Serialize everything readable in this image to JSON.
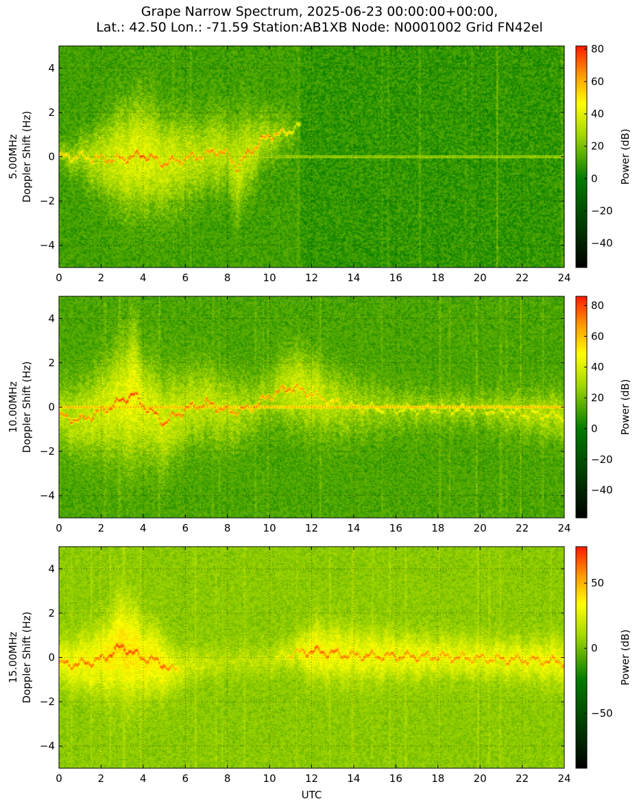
{
  "figure": {
    "title_line1": "Grape Narrow Spectrum, 2025-06-23 00:00:00+00:00,",
    "title_line2": "Lat.: 42.50 Lon.: -71.59 Station:AB1XB Node: N0001002 Grid FN42el"
  },
  "colors": {
    "low": "#000000",
    "green": "#007a00",
    "yellow_green": "#a5d800",
    "yellow": "#ffff00",
    "orange": "#ff9900",
    "red": "#ff1a00"
  },
  "chart_data": [
    {
      "type": "heatmap",
      "frequency_label": "5.00MHz",
      "ylabel": "Doppler Shift (Hz)",
      "xlabel": "",
      "colorbar_label": "Power (dB)",
      "xlim": [
        0,
        24
      ],
      "ylim": [
        -5,
        5
      ],
      "x_ticks": [
        0,
        2,
        4,
        6,
        8,
        10,
        12,
        14,
        16,
        18,
        20,
        22,
        24
      ],
      "y_ticks": [
        -4,
        -2,
        0,
        2,
        4
      ],
      "colorbar_range": [
        -55,
        82
      ],
      "colorbar_ticks": [
        -40,
        -20,
        0,
        20,
        40,
        60,
        80
      ],
      "grid": true,
      "background_db": 8,
      "carrier_db": 25,
      "carrier_extent": [
        0,
        24
      ],
      "trace": {
        "x": [
          0,
          1,
          2,
          3,
          4,
          5,
          6,
          7,
          7.5,
          8,
          8.5,
          9,
          9.5,
          10,
          10.5,
          11,
          11.5
        ],
        "y": [
          0,
          0,
          -0.1,
          -0.1,
          0.1,
          -0.3,
          -0.1,
          0.1,
          0.3,
          0.1,
          -0.5,
          0.2,
          0.6,
          1.0,
          1.0,
          1.2,
          1.4
        ],
        "peak_db": [
          55,
          58,
          62,
          70,
          75,
          70,
          68,
          66,
          70,
          62,
          66,
          72,
          70,
          66,
          58,
          48,
          40
        ],
        "spread_hz": [
          0.4,
          0.7,
          1.2,
          1.6,
          1.8,
          1.5,
          1.4,
          1.2,
          1.4,
          1.1,
          1.6,
          1.3,
          1.0,
          0.9,
          0.8,
          0.8,
          0.6
        ],
        "wing_db": [
          22,
          26,
          32,
          38,
          40,
          36,
          34,
          30,
          32,
          30,
          34,
          32,
          30,
          26,
          22,
          18,
          14
        ]
      }
    },
    {
      "type": "heatmap",
      "frequency_label": "10.00MHz",
      "ylabel": "Doppler Shift (Hz)",
      "xlabel": "",
      "colorbar_label": "Power (dB)",
      "xlim": [
        0,
        24
      ],
      "ylim": [
        -5,
        5
      ],
      "x_ticks": [
        0,
        2,
        4,
        6,
        8,
        10,
        12,
        14,
        16,
        18,
        20,
        22,
        24
      ],
      "y_ticks": [
        -4,
        -2,
        0,
        2,
        4
      ],
      "colorbar_range": [
        -58,
        86
      ],
      "colorbar_ticks": [
        -40,
        -20,
        0,
        20,
        40,
        60,
        80
      ],
      "grid": true,
      "background_db": 10,
      "carrier_db": 55,
      "carrier_extent": [
        0,
        24
      ],
      "trace": {
        "x": [
          0,
          1,
          2,
          3,
          3.5,
          4,
          5,
          6,
          7,
          8,
          9,
          10,
          11,
          12,
          13,
          14,
          16,
          18,
          20,
          22,
          24
        ],
        "y": [
          -0.4,
          -0.6,
          -0.2,
          0.3,
          0.6,
          0.1,
          -0.7,
          -0.1,
          0.2,
          -0.2,
          -0.1,
          0.5,
          0.9,
          0.6,
          0.2,
          0.0,
          -0.1,
          -0.1,
          -0.1,
          -0.3,
          -0.4
        ],
        "peak_db": [
          72,
          75,
          72,
          82,
          84,
          78,
          80,
          74,
          76,
          74,
          70,
          70,
          76,
          62,
          56,
          52,
          48,
          48,
          48,
          50,
          52
        ],
        "spread_hz": [
          1.0,
          1.2,
          1.4,
          1.8,
          2.2,
          1.6,
          1.5,
          1.3,
          1.2,
          1.2,
          1.0,
          0.9,
          1.2,
          1.2,
          1.1,
          1.0,
          0.7,
          0.6,
          0.6,
          0.7,
          0.8
        ],
        "wing_db": [
          32,
          34,
          38,
          42,
          46,
          40,
          38,
          34,
          34,
          32,
          28,
          28,
          36,
          38,
          32,
          28,
          26,
          26,
          26,
          30,
          32
        ]
      }
    },
    {
      "type": "heatmap",
      "frequency_label": "15.00MHz",
      "ylabel": "Doppler Shift (Hz)",
      "xlabel": "UTC",
      "colorbar_label": "Power (dB)",
      "xlim": [
        0,
        24
      ],
      "ylim": [
        -5,
        5
      ],
      "x_ticks": [
        0,
        2,
        4,
        6,
        8,
        10,
        12,
        14,
        16,
        18,
        20,
        22,
        24
      ],
      "y_ticks": [
        -4,
        -2,
        0,
        2,
        4
      ],
      "colorbar_range": [
        -92,
        78
      ],
      "colorbar_ticks": [
        -50,
        0,
        50
      ],
      "grid": true,
      "background_db": 2,
      "carrier_db": 35,
      "carrier_extent": [
        11.3,
        24
      ],
      "trace": {
        "x": [
          0,
          1,
          2,
          3,
          3.5,
          4,
          5,
          5.3,
          6,
          8,
          10,
          11.3,
          12,
          13,
          14,
          16,
          18,
          20,
          22,
          24
        ],
        "y": [
          -0.3,
          -0.3,
          -0.1,
          0.5,
          0.2,
          0.0,
          -0.3,
          -0.6,
          -0.4,
          -0.2,
          -0.1,
          0.2,
          0.3,
          0.2,
          0.1,
          0.05,
          0.05,
          -0.05,
          -0.1,
          -0.2
        ],
        "peak_db": [
          62,
          65,
          66,
          75,
          74,
          68,
          66,
          58,
          28,
          18,
          20,
          50,
          70,
          66,
          62,
          62,
          60,
          58,
          58,
          60
        ],
        "spread_hz": [
          0.7,
          0.9,
          1.1,
          1.6,
          1.5,
          1.2,
          1.0,
          0.8,
          0.6,
          0.5,
          0.5,
          0.6,
          0.9,
          0.9,
          0.9,
          0.8,
          0.7,
          0.7,
          0.7,
          0.8
        ],
        "wing_db": [
          30,
          32,
          34,
          40,
          40,
          36,
          34,
          28,
          20,
          14,
          16,
          24,
          34,
          32,
          30,
          30,
          28,
          28,
          28,
          30
        ]
      }
    }
  ]
}
